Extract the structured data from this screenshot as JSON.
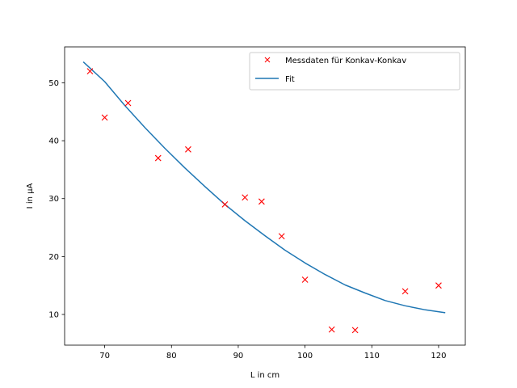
{
  "chart_data": {
    "type": "scatter",
    "title": "",
    "xlabel": "L in cm",
    "ylabel": "I in μA",
    "xlim": [
      64,
      124
    ],
    "ylim": [
      4.7,
      56.2
    ],
    "xticks": [
      70,
      80,
      90,
      100,
      110,
      120
    ],
    "yticks": [
      10,
      20,
      30,
      40,
      50
    ],
    "grid": false,
    "legend_position": "top-right",
    "series": [
      {
        "name": "Messdaten für Konkav-Konkav",
        "kind": "scatter",
        "marker": "x",
        "color": "#ff0000",
        "x": [
          67.8,
          70.0,
          73.5,
          78.0,
          82.5,
          88.0,
          91.0,
          93.5,
          96.5,
          100.0,
          104.0,
          107.5,
          115.0,
          120.0
        ],
        "y": [
          52.0,
          44.0,
          46.5,
          37.0,
          38.5,
          29.0,
          30.2,
          29.5,
          23.5,
          16.0,
          7.4,
          7.3,
          14.0,
          15.0
        ]
      },
      {
        "name": "Fit",
        "kind": "line",
        "color": "#1f77b4",
        "x": [
          66.8,
          70,
          73,
          76,
          79,
          82,
          85,
          88,
          91,
          94,
          97,
          100,
          103,
          106,
          109,
          112,
          115,
          118,
          121
        ],
        "y": [
          53.6,
          50.2,
          46.1,
          42.3,
          38.7,
          35.3,
          32.1,
          29.0,
          26.2,
          23.6,
          21.1,
          18.9,
          16.9,
          15.1,
          13.7,
          12.4,
          11.5,
          10.8,
          10.3
        ]
      }
    ]
  }
}
